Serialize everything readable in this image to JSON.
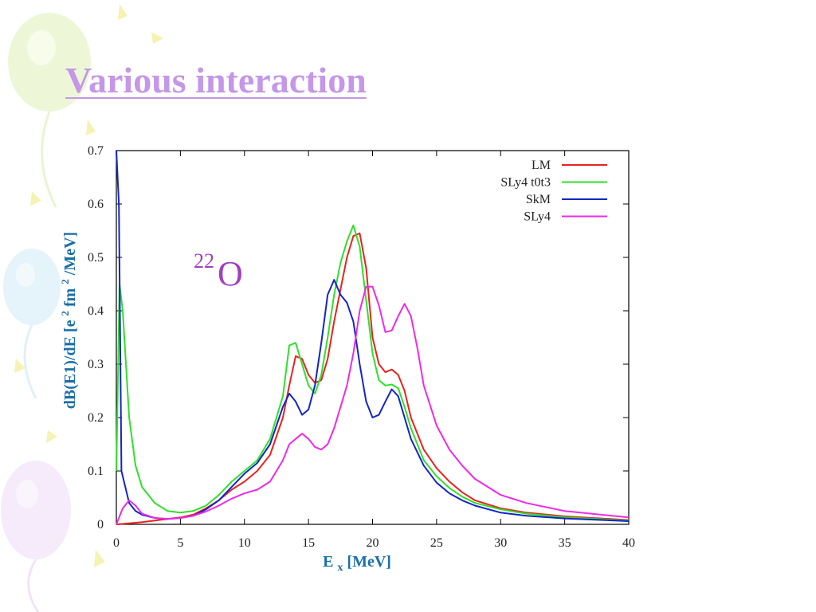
{
  "slide": {
    "title": "Various interaction"
  },
  "chart_data": {
    "type": "line",
    "title": "",
    "annotation": {
      "mass_number": "22",
      "element": "O"
    },
    "xlabel": {
      "main": "E",
      "subscript": "x",
      "unit": " [MeV]"
    },
    "ylabel": {
      "part1": "dB(E1)/dE [e",
      "sup1": "2",
      "part2": "fm",
      "sup2": "2",
      "part3": "/MeV]"
    },
    "xlim": [
      0,
      40
    ],
    "ylim": [
      0,
      0.7
    ],
    "xticks": [
      0,
      5,
      10,
      15,
      20,
      25,
      30,
      35,
      40
    ],
    "yticks": [
      0,
      0.1,
      0.2,
      0.3,
      0.4,
      0.5,
      0.6,
      0.7
    ],
    "grid": false,
    "legend_position": "top-right",
    "series": [
      {
        "name": "LM",
        "color": "#e8231f",
        "points": [
          [
            0,
            0
          ],
          [
            1,
            0.002
          ],
          [
            2,
            0.004
          ],
          [
            3,
            0.007
          ],
          [
            4,
            0.01
          ],
          [
            5,
            0.013
          ],
          [
            6,
            0.018
          ],
          [
            7,
            0.03
          ],
          [
            8,
            0.045
          ],
          [
            9,
            0.065
          ],
          [
            10,
            0.08
          ],
          [
            11,
            0.1
          ],
          [
            12,
            0.13
          ],
          [
            13,
            0.2
          ],
          [
            13.5,
            0.26
          ],
          [
            14,
            0.315
          ],
          [
            14.5,
            0.31
          ],
          [
            15,
            0.28
          ],
          [
            15.5,
            0.265
          ],
          [
            16,
            0.27
          ],
          [
            16.5,
            0.31
          ],
          [
            17,
            0.38
          ],
          [
            17.5,
            0.44
          ],
          [
            18,
            0.5
          ],
          [
            18.5,
            0.54
          ],
          [
            19,
            0.545
          ],
          [
            19.5,
            0.48
          ],
          [
            20,
            0.35
          ],
          [
            20.5,
            0.3
          ],
          [
            21,
            0.285
          ],
          [
            21.5,
            0.29
          ],
          [
            22,
            0.28
          ],
          [
            22.5,
            0.25
          ],
          [
            23,
            0.2
          ],
          [
            24,
            0.14
          ],
          [
            25,
            0.105
          ],
          [
            26,
            0.08
          ],
          [
            27,
            0.06
          ],
          [
            28,
            0.045
          ],
          [
            30,
            0.03
          ],
          [
            32,
            0.022
          ],
          [
            35,
            0.015
          ],
          [
            40,
            0.008
          ]
        ]
      },
      {
        "name": "SLy4 t0t3",
        "color": "#2fe02a",
        "points": [
          [
            0,
            0.1
          ],
          [
            0.25,
            0.45
          ],
          [
            0.5,
            0.4
          ],
          [
            1,
            0.2
          ],
          [
            1.5,
            0.11
          ],
          [
            2,
            0.07
          ],
          [
            3,
            0.04
          ],
          [
            4,
            0.025
          ],
          [
            5,
            0.022
          ],
          [
            6,
            0.025
          ],
          [
            7,
            0.035
          ],
          [
            8,
            0.055
          ],
          [
            9,
            0.08
          ],
          [
            10,
            0.1
          ],
          [
            11,
            0.12
          ],
          [
            12,
            0.16
          ],
          [
            13,
            0.24
          ],
          [
            13.5,
            0.335
          ],
          [
            14,
            0.34
          ],
          [
            14.5,
            0.3
          ],
          [
            15,
            0.26
          ],
          [
            15.5,
            0.245
          ],
          [
            16,
            0.28
          ],
          [
            16.5,
            0.35
          ],
          [
            17,
            0.43
          ],
          [
            17.5,
            0.49
          ],
          [
            18,
            0.53
          ],
          [
            18.5,
            0.56
          ],
          [
            19,
            0.52
          ],
          [
            19.5,
            0.42
          ],
          [
            20,
            0.32
          ],
          [
            20.5,
            0.27
          ],
          [
            21,
            0.26
          ],
          [
            21.5,
            0.262
          ],
          [
            22,
            0.255
          ],
          [
            22.5,
            0.22
          ],
          [
            23,
            0.18
          ],
          [
            24,
            0.12
          ],
          [
            25,
            0.09
          ],
          [
            26,
            0.068
          ],
          [
            27,
            0.052
          ],
          [
            28,
            0.04
          ],
          [
            30,
            0.028
          ],
          [
            32,
            0.02
          ],
          [
            35,
            0.013
          ],
          [
            40,
            0.007
          ]
        ]
      },
      {
        "name": "SkM",
        "color": "#1424c8",
        "points": [
          [
            0,
            0.7
          ],
          [
            0.2,
            0.6
          ],
          [
            0.4,
            0.1
          ],
          [
            1,
            0.04
          ],
          [
            1.5,
            0.025
          ],
          [
            2,
            0.018
          ],
          [
            3,
            0.012
          ],
          [
            4,
            0.01
          ],
          [
            5,
            0.012
          ],
          [
            6,
            0.016
          ],
          [
            7,
            0.028
          ],
          [
            8,
            0.045
          ],
          [
            9,
            0.07
          ],
          [
            10,
            0.095
          ],
          [
            11,
            0.115
          ],
          [
            12,
            0.15
          ],
          [
            13,
            0.22
          ],
          [
            13.5,
            0.245
          ],
          [
            14,
            0.23
          ],
          [
            14.5,
            0.205
          ],
          [
            15,
            0.215
          ],
          [
            15.5,
            0.26
          ],
          [
            16,
            0.34
          ],
          [
            16.5,
            0.43
          ],
          [
            17,
            0.458
          ],
          [
            17.5,
            0.43
          ],
          [
            18,
            0.415
          ],
          [
            18.5,
            0.38
          ],
          [
            19,
            0.3
          ],
          [
            19.5,
            0.23
          ],
          [
            20,
            0.2
          ],
          [
            20.5,
            0.205
          ],
          [
            21,
            0.23
          ],
          [
            21.5,
            0.253
          ],
          [
            22,
            0.24
          ],
          [
            22.5,
            0.2
          ],
          [
            23,
            0.16
          ],
          [
            24,
            0.11
          ],
          [
            25,
            0.078
          ],
          [
            26,
            0.058
          ],
          [
            27,
            0.045
          ],
          [
            28,
            0.035
          ],
          [
            30,
            0.022
          ],
          [
            32,
            0.016
          ],
          [
            35,
            0.011
          ],
          [
            40,
            0.006
          ]
        ]
      },
      {
        "name": "SLy4",
        "color": "#ee2ae8",
        "points": [
          [
            0,
            0
          ],
          [
            0.5,
            0.03
          ],
          [
            1,
            0.045
          ],
          [
            1.5,
            0.035
          ],
          [
            2,
            0.02
          ],
          [
            3,
            0.012
          ],
          [
            4,
            0.01
          ],
          [
            5,
            0.012
          ],
          [
            6,
            0.016
          ],
          [
            7,
            0.024
          ],
          [
            8,
            0.035
          ],
          [
            9,
            0.048
          ],
          [
            10,
            0.058
          ],
          [
            11,
            0.065
          ],
          [
            12,
            0.08
          ],
          [
            13,
            0.12
          ],
          [
            13.5,
            0.15
          ],
          [
            14,
            0.16
          ],
          [
            14.5,
            0.17
          ],
          [
            15,
            0.16
          ],
          [
            15.5,
            0.145
          ],
          [
            16,
            0.14
          ],
          [
            16.5,
            0.15
          ],
          [
            17,
            0.18
          ],
          [
            18,
            0.26
          ],
          [
            18.5,
            0.32
          ],
          [
            19,
            0.4
          ],
          [
            19.5,
            0.445
          ],
          [
            20,
            0.445
          ],
          [
            20.5,
            0.41
          ],
          [
            21,
            0.36
          ],
          [
            21.5,
            0.363
          ],
          [
            22,
            0.39
          ],
          [
            22.5,
            0.413
          ],
          [
            23,
            0.39
          ],
          [
            23.5,
            0.33
          ],
          [
            24,
            0.26
          ],
          [
            25,
            0.185
          ],
          [
            26,
            0.14
          ],
          [
            27,
            0.11
          ],
          [
            28,
            0.085
          ],
          [
            30,
            0.055
          ],
          [
            32,
            0.04
          ],
          [
            35,
            0.025
          ],
          [
            40,
            0.013
          ]
        ]
      }
    ]
  }
}
